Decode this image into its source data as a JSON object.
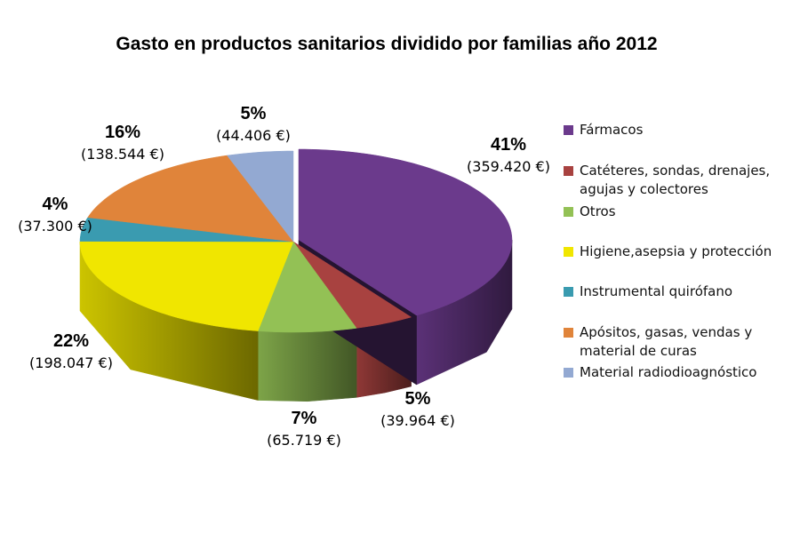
{
  "chart_data": {
    "type": "pie",
    "title": "Gasto en productos sanitarios dividido por familias año 2012",
    "legend_position": "right",
    "slices": [
      {
        "name": "Fármacos",
        "pct": "41%",
        "value_label": "(359.420 €)",
        "value": 359420,
        "color": "#6b3a8c"
      },
      {
        "name": "Catéteres, sondas, drenajes, agujas y colectores",
        "pct": "5%",
        "value_label": "(39.964 €)",
        "value": 39964,
        "color": "#a84240"
      },
      {
        "name": "Otros",
        "pct": "7%",
        "value_label": "(65.719 €)",
        "value": 65719,
        "color": "#93c155"
      },
      {
        "name": "Higiene,asepsia y protección",
        "pct": "22%",
        "value_label": "(198.047 €)",
        "value": 198047,
        "color": "#f0e600"
      },
      {
        "name": "Instrumental quirófano",
        "pct": "4%",
        "value_label": "(37.300 €)",
        "value": 37300,
        "color": "#3a9bb0"
      },
      {
        "name": "Apósitos, gasas, vendas y material de curas",
        "pct": "16%",
        "value_label": "(138.544 €)",
        "value": 138544,
        "color": "#e0843a"
      },
      {
        "name": "Material radiodioagnóstico",
        "pct": "5%",
        "value_label": "(44.406 €)",
        "value": 44406,
        "color": "#93a9d2"
      }
    ]
  }
}
